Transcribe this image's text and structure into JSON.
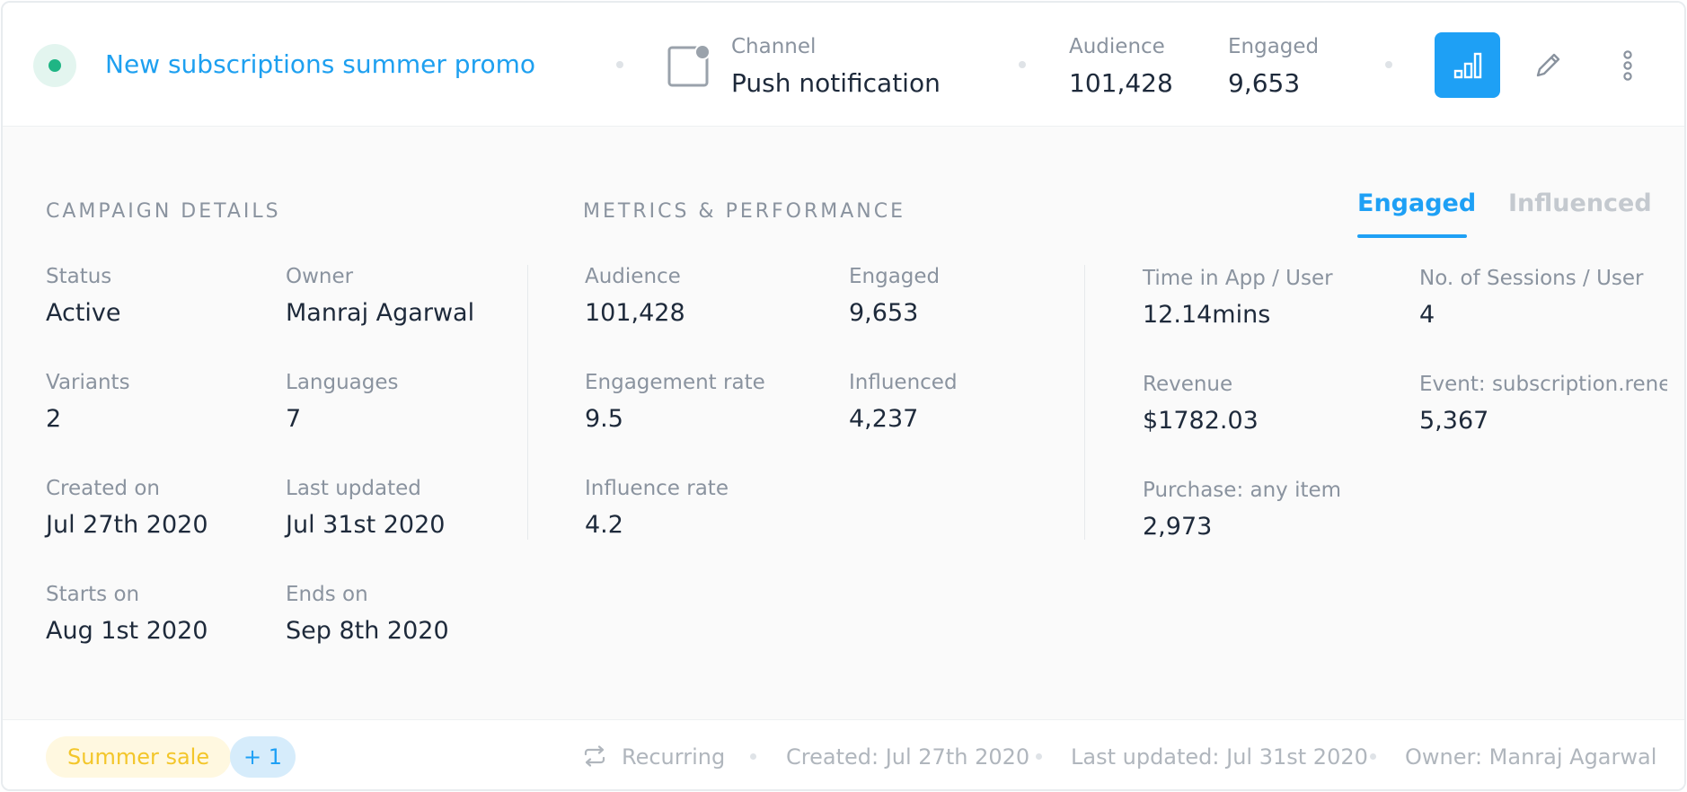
{
  "header": {
    "campaign_title": "New subscriptions summer promo",
    "status_color": "#1fb584",
    "channel_label": "Channel",
    "channel_value": "Push notification",
    "channel_icon": "push-notification-icon",
    "audience_label": "Audience",
    "audience_value": "101,428",
    "engaged_label": "Engaged",
    "engaged_value": "9,653",
    "actions": [
      "bar-chart-icon",
      "pencil-icon",
      "more-vertical-icon"
    ]
  },
  "details": {
    "title": "CAMPAIGN DETAILS",
    "fields": [
      {
        "label": "Status",
        "value": "Active"
      },
      {
        "label": "Owner",
        "value": "Manraj Agarwal"
      },
      {
        "label": "Variants",
        "value": "2"
      },
      {
        "label": "Languages",
        "value": "7"
      },
      {
        "label": "Created on",
        "value": "Jul 27th 2020"
      },
      {
        "label": "Last updated",
        "value": "Jul 31st 2020"
      },
      {
        "label": "Starts on",
        "value": "Aug 1st 2020"
      },
      {
        "label": "Ends on",
        "value": "Sep 8th 2020"
      }
    ]
  },
  "metrics": {
    "title": "METRICS & PERFORMANCE",
    "fields": [
      {
        "label": "Audience",
        "value": "101,428"
      },
      {
        "label": "Engaged",
        "value": "9,653"
      },
      {
        "label": "Engagement rate",
        "value": "9.5"
      },
      {
        "label": "Influenced",
        "value": "4,237"
      },
      {
        "label": "Influence rate",
        "value": "4.2"
      }
    ]
  },
  "tabs": {
    "engaged": "Engaged",
    "influenced": "Influenced",
    "active": "engaged",
    "accent_color": "#1ea0f5"
  },
  "engaged_metrics": {
    "fields": [
      {
        "label": "Time in App / User",
        "value": "12.14mins"
      },
      {
        "label": "No. of Sessions / User",
        "value": "4"
      },
      {
        "label": "Revenue",
        "value": "$1782.03"
      },
      {
        "label": "Event: subscription.renew",
        "value": "5,367"
      },
      {
        "label": "Purchase: any item",
        "value": "2,973"
      }
    ]
  },
  "footer": {
    "tag_primary": "Summer sale",
    "tag_more": "+ 1",
    "recurring": "Recurring",
    "recurring_icon": "repeat-icon",
    "created": "Created: Jul 27th 2020",
    "last_updated": "Last updated: Jul 31st 2020",
    "owner": "Owner: Manraj Agarwal"
  }
}
